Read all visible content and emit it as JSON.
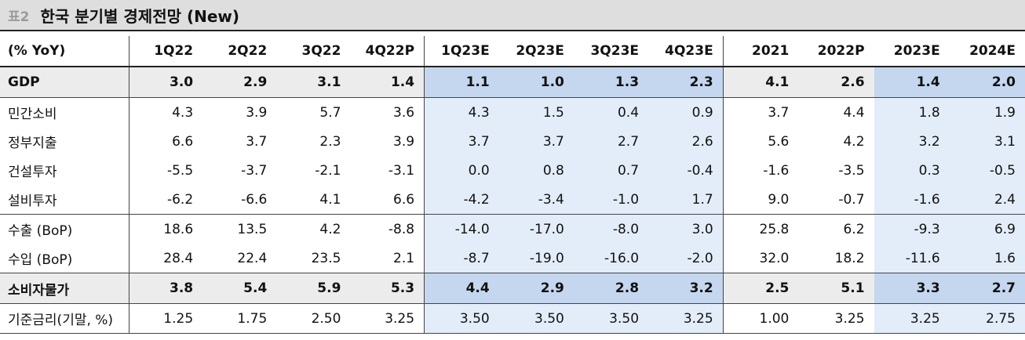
{
  "title": {
    "tag": "표2",
    "text": "한국 분기별 경제전망 (New)"
  },
  "header": [
    "(% YoY)",
    "1Q22",
    "2Q22",
    "3Q22",
    "4Q22P",
    "1Q23E",
    "2Q23E",
    "3Q23E",
    "4Q23E",
    "2021",
    "2022P",
    "2023E",
    "2024E"
  ],
  "rows": [
    {
      "label": "GDP",
      "values": [
        "3.0",
        "2.9",
        "3.1",
        "1.4",
        "1.1",
        "1.0",
        "1.3",
        "2.3",
        "4.1",
        "2.6",
        "1.4",
        "2.0"
      ]
    },
    {
      "label": "민간소비",
      "values": [
        "4.3",
        "3.9",
        "5.7",
        "3.6",
        "4.3",
        "1.5",
        "0.4",
        "0.9",
        "3.7",
        "4.4",
        "1.8",
        "1.9"
      ]
    },
    {
      "label": "정부지출",
      "values": [
        "6.6",
        "3.7",
        "2.3",
        "3.9",
        "3.7",
        "3.7",
        "2.7",
        "2.6",
        "5.6",
        "4.2",
        "3.2",
        "3.1"
      ]
    },
    {
      "label": "건설투자",
      "values": [
        "-5.5",
        "-3.7",
        "-2.1",
        "-3.1",
        "0.0",
        "0.8",
        "0.7",
        "-0.4",
        "-1.6",
        "-3.5",
        "0.3",
        "-0.5"
      ]
    },
    {
      "label": "설비투자",
      "values": [
        "-6.2",
        "-6.6",
        "4.1",
        "6.6",
        "-4.2",
        "-3.4",
        "-1.0",
        "1.7",
        "9.0",
        "-0.7",
        "-1.6",
        "2.4"
      ]
    },
    {
      "label": "수출 (BoP)",
      "values": [
        "18.6",
        "13.5",
        "4.2",
        "-8.8",
        "-14.0",
        "-17.0",
        "-8.0",
        "3.0",
        "25.8",
        "6.2",
        "-9.3",
        "6.9"
      ]
    },
    {
      "label": "수입 (BoP)",
      "values": [
        "28.4",
        "22.4",
        "23.5",
        "2.1",
        "-8.7",
        "-19.0",
        "-16.0",
        "-2.0",
        "32.0",
        "18.2",
        "-11.6",
        "1.6"
      ]
    },
    {
      "label": "소비자물가",
      "values": [
        "3.8",
        "5.4",
        "5.9",
        "5.3",
        "4.4",
        "2.9",
        "2.8",
        "3.2",
        "2.5",
        "5.1",
        "3.3",
        "2.7"
      ]
    },
    {
      "label": "기준금리(기말, %)",
      "values": [
        "1.25",
        "1.75",
        "2.50",
        "3.25",
        "3.50",
        "3.50",
        "3.50",
        "3.25",
        "1.00",
        "3.25",
        "3.25",
        "2.75"
      ]
    }
  ],
  "colors": {
    "highlight_light": "#e3edf9",
    "highlight_strong": "#c5d7ef",
    "bold_row_bg": "#ececec",
    "title_bg": "#dedede"
  }
}
